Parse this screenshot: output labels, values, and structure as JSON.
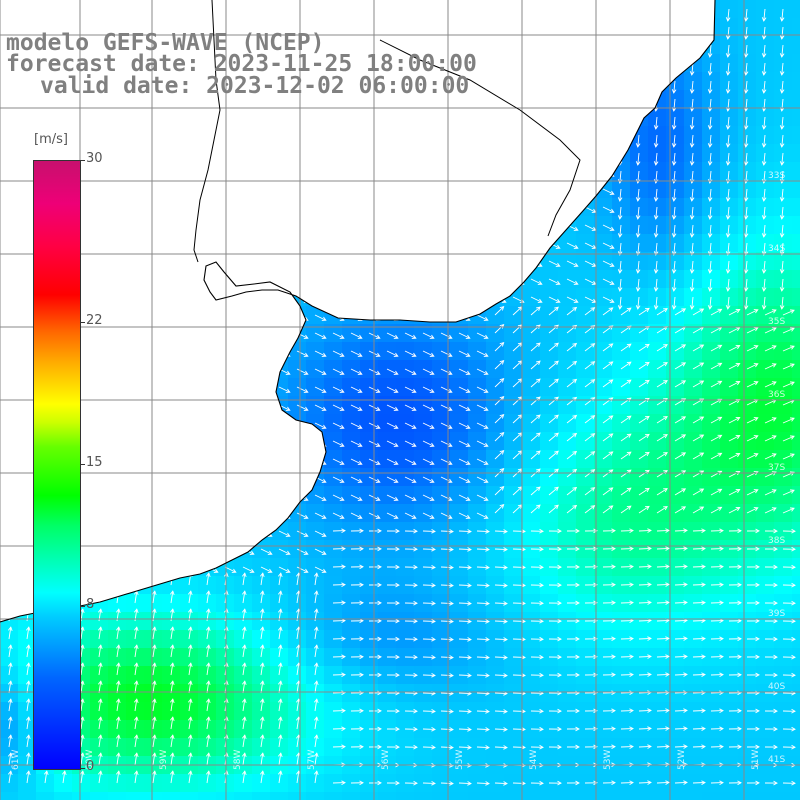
{
  "title": {
    "model": "modelo GEFS-WAVE (NCEP)",
    "forecast": "forecast date: 2023-11-25 18:00:00",
    "valid": "valid date: 2023-12-02 06:00:00"
  },
  "colorbar": {
    "unit": "[m/s]",
    "ticks": [
      {
        "value": 30,
        "label": "30"
      },
      {
        "value": 22,
        "label": "22"
      },
      {
        "value": 15,
        "label": "15"
      },
      {
        "value": 8,
        "label": "8"
      },
      {
        "value": 0,
        "label": "0"
      }
    ],
    "min": 0,
    "max": 30
  },
  "map": {
    "lat_labels": [
      "33S",
      "34S",
      "35S",
      "36S",
      "37S",
      "38S",
      "39S",
      "40S",
      "41S"
    ],
    "lon_labels": [
      "61W",
      "60W",
      "59W",
      "58W",
      "57W",
      "56W",
      "55W",
      "54W",
      "53W",
      "52W",
      "51W"
    ],
    "land_color": "#ffffff",
    "coast_color": "#000000",
    "grid_color": "#888888"
  }
}
